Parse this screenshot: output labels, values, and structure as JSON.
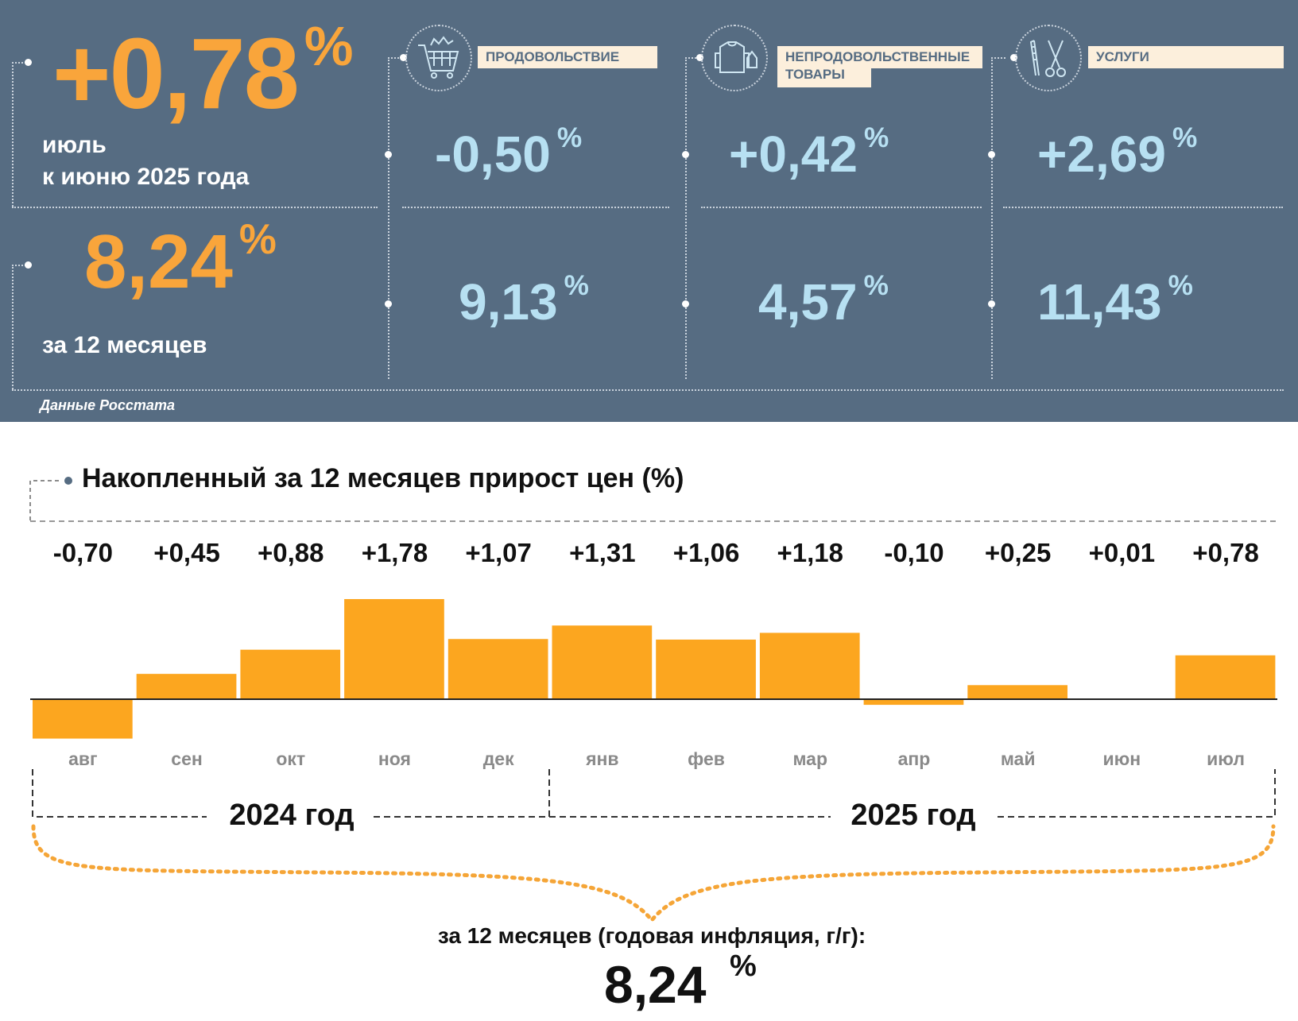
{
  "header": {
    "monthly": {
      "value": "+0,78",
      "unit": "%",
      "label_line1": "июль",
      "label_line2": "к июню 2025 года"
    },
    "annual": {
      "value": "8,24",
      "unit": "%",
      "label": "за 12 месяцев"
    },
    "categories": [
      {
        "name": "ПРОДОВОЛЬСТВИЕ",
        "icon": "shopping-cart-icon",
        "monthly": "-0,50",
        "annual": "9,13",
        "unit": "%"
      },
      {
        "name": "НЕПРОДОВОЛЬСТВЕННЫЕ ТОВАРЫ",
        "name_line1": "НЕПРОДОВОЛЬСТВЕННЫЕ",
        "name_line2": "ТОВАРЫ",
        "icon": "clothing-icon",
        "monthly": "+0,42",
        "annual": "4,57",
        "unit": "%"
      },
      {
        "name": "УСЛУГИ",
        "icon": "scissors-comb-icon",
        "monthly": "+2,69",
        "annual": "11,43",
        "unit": "%"
      }
    ],
    "source": "Данные Росстата"
  },
  "chart_data": {
    "type": "bar",
    "title": "Накопленный за 12 месяцев прирост цен (%)",
    "categories": [
      "авг",
      "сен",
      "окт",
      "ноя",
      "дек",
      "янв",
      "фев",
      "мар",
      "апр",
      "май",
      "июн",
      "июл"
    ],
    "values": [
      -0.7,
      0.45,
      0.88,
      1.78,
      1.07,
      1.31,
      1.06,
      1.18,
      -0.1,
      0.25,
      0.01,
      0.78
    ],
    "value_labels": [
      "-0,70",
      "+0,45",
      "+0,88",
      "+1,78",
      "+1,07",
      "+1,31",
      "+1,06",
      "+1,18",
      "-0,10",
      "+0,25",
      "+0,01",
      "+0,78"
    ],
    "years": [
      "2024 год",
      "2025 год"
    ],
    "summary_label": "за 12 месяцев (годовая инфляция, г/г):",
    "summary_value": "8,24",
    "summary_unit": "%",
    "bar_color": "#fca61f",
    "xlabel": "",
    "ylabel": ""
  }
}
